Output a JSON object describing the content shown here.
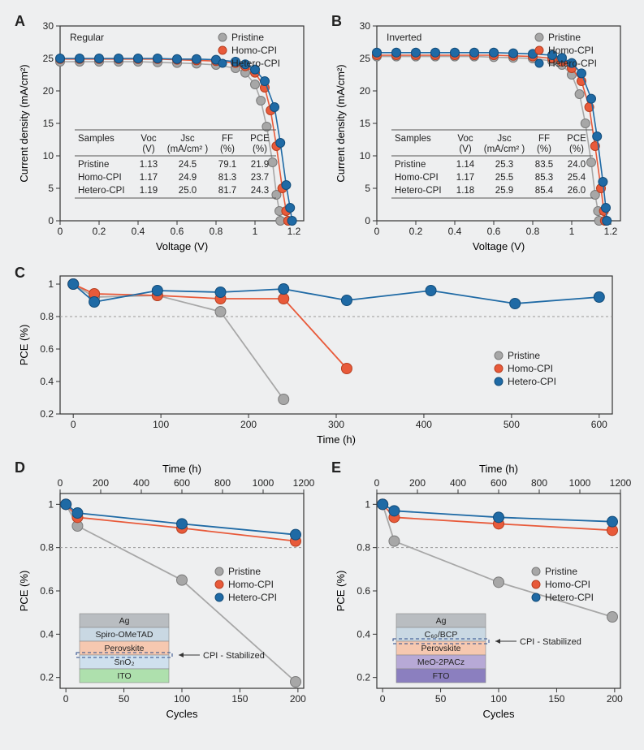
{
  "colors": {
    "pristine": "#a7a7a7",
    "homo": "#e85a3a",
    "hetero": "#1f6aa5",
    "pristine_edge": "#7a7a7a",
    "homo_edge": "#b73f20",
    "hetero_edge": "#124c7a",
    "axis": "#333333",
    "grid": "#bdbdbd",
    "grid_dash": "#999999",
    "background": "#eeeff0",
    "text": "#222222"
  },
  "panelA": {
    "label": "A",
    "title": "Regular",
    "type": "scatter-line",
    "xlabel": "Voltage (V)",
    "ylabel": "Current density (mA/cm²)",
    "xlim": [
      0.0,
      1.25
    ],
    "ylim": [
      0,
      30
    ],
    "xticks": [
      0.0,
      0.2,
      0.4,
      0.6,
      0.8,
      1.0,
      1.2
    ],
    "yticks": [
      0,
      5,
      10,
      15,
      20,
      25,
      30
    ],
    "marker_size": 5.5,
    "line_width": 1.6,
    "series": {
      "pristine": {
        "label": "Pristine",
        "x": [
          0.0,
          0.1,
          0.2,
          0.3,
          0.4,
          0.5,
          0.6,
          0.7,
          0.8,
          0.9,
          0.95,
          1.0,
          1.03,
          1.06,
          1.09,
          1.11,
          1.125,
          1.13
        ],
        "y": [
          24.5,
          24.5,
          24.5,
          24.5,
          24.5,
          24.4,
          24.3,
          24.2,
          24.0,
          23.5,
          22.8,
          21.0,
          18.5,
          14.5,
          9.0,
          4.0,
          1.5,
          0.0
        ]
      },
      "homo": {
        "label": "Homo-CPI",
        "x": [
          0.0,
          0.1,
          0.2,
          0.3,
          0.4,
          0.5,
          0.6,
          0.7,
          0.8,
          0.9,
          0.95,
          1.0,
          1.05,
          1.08,
          1.11,
          1.14,
          1.16,
          1.17
        ],
        "y": [
          24.9,
          24.9,
          24.9,
          24.9,
          24.9,
          24.9,
          24.8,
          24.7,
          24.6,
          24.3,
          23.8,
          22.8,
          20.5,
          17.0,
          11.5,
          5.0,
          1.5,
          0.0
        ]
      },
      "hetero": {
        "label": "Hetero-CPI",
        "x": [
          0.0,
          0.1,
          0.2,
          0.3,
          0.4,
          0.5,
          0.6,
          0.7,
          0.8,
          0.9,
          0.95,
          1.0,
          1.05,
          1.1,
          1.13,
          1.16,
          1.18,
          1.19
        ],
        "y": [
          25.0,
          25.0,
          25.0,
          25.0,
          25.0,
          25.0,
          24.9,
          24.9,
          24.8,
          24.5,
          24.1,
          23.3,
          21.5,
          17.5,
          12.0,
          5.5,
          2.0,
          0.0
        ]
      }
    },
    "table": {
      "columns": [
        "Samples",
        "Voc\n(V)",
        "Jsc\n(mA/cm² )",
        "FF\n(%)",
        "PCE\n(%)"
      ],
      "rows": [
        [
          "Pristine",
          "1.13",
          "24.5",
          "79.1",
          "21.9"
        ],
        [
          "Homo-CPI",
          "1.17",
          "24.9",
          "81.3",
          "23.7"
        ],
        [
          "Hetero-CPI",
          "1.19",
          "25.0",
          "81.7",
          "24.3"
        ]
      ]
    }
  },
  "panelB": {
    "label": "B",
    "title": "Inverted",
    "type": "scatter-line",
    "xlabel": "Voltage (V)",
    "ylabel": "Current density (mA/cm²)",
    "xlim": [
      0.0,
      1.25
    ],
    "ylim": [
      0,
      30
    ],
    "xticks": [
      0.0,
      0.2,
      0.4,
      0.6,
      0.8,
      1.0,
      1.2
    ],
    "yticks": [
      0,
      5,
      10,
      15,
      20,
      25,
      30
    ],
    "marker_size": 5.5,
    "line_width": 1.6,
    "series": {
      "pristine": {
        "label": "Pristine",
        "x": [
          0.0,
          0.1,
          0.2,
          0.3,
          0.4,
          0.5,
          0.6,
          0.7,
          0.8,
          0.9,
          0.95,
          1.0,
          1.04,
          1.07,
          1.1,
          1.12,
          1.135,
          1.14
        ],
        "y": [
          25.3,
          25.3,
          25.3,
          25.3,
          25.3,
          25.3,
          25.2,
          25.1,
          25.0,
          24.6,
          24.0,
          22.5,
          19.5,
          15.0,
          9.0,
          4.0,
          1.5,
          0.0
        ]
      },
      "homo": {
        "label": "Homo-CPI",
        "x": [
          0.0,
          0.1,
          0.2,
          0.3,
          0.4,
          0.5,
          0.6,
          0.7,
          0.8,
          0.9,
          0.95,
          1.0,
          1.05,
          1.09,
          1.12,
          1.15,
          1.165,
          1.17
        ],
        "y": [
          25.5,
          25.5,
          25.5,
          25.5,
          25.5,
          25.5,
          25.5,
          25.4,
          25.3,
          25.0,
          24.5,
          23.5,
          21.5,
          17.5,
          11.5,
          5.0,
          1.5,
          0.0
        ]
      },
      "hetero": {
        "label": "Hetero-CPI",
        "x": [
          0.0,
          0.1,
          0.2,
          0.3,
          0.4,
          0.5,
          0.6,
          0.7,
          0.8,
          0.9,
          0.95,
          1.0,
          1.05,
          1.1,
          1.13,
          1.16,
          1.175,
          1.18
        ],
        "y": [
          25.9,
          25.9,
          25.9,
          25.9,
          25.9,
          25.9,
          25.9,
          25.8,
          25.7,
          25.5,
          25.1,
          24.3,
          22.7,
          18.8,
          13.0,
          6.0,
          2.0,
          0.0
        ]
      }
    },
    "table": {
      "columns": [
        "Samples",
        "Voc\n(V)",
        "Jsc\n(mA/cm² )",
        "FF\n(%)",
        "PCE\n(%)"
      ],
      "rows": [
        [
          "Pristine",
          "1.14",
          "25.3",
          "83.5",
          "24.0"
        ],
        [
          "Homo-CPI",
          "1.17",
          "25.5",
          "85.3",
          "25.4"
        ],
        [
          "Hetero-CPI",
          "1.18",
          "25.9",
          "85.4",
          "26.0"
        ]
      ]
    }
  },
  "panelC": {
    "label": "C",
    "type": "scatter-line",
    "xlabel": "Time (h)",
    "ylabel": "PCE (%)",
    "xlim": [
      -15,
      615
    ],
    "ylim": [
      0.2,
      1.05
    ],
    "xticks": [
      0,
      100,
      200,
      300,
      400,
      500,
      600
    ],
    "yticks": [
      0.2,
      0.4,
      0.6,
      0.8,
      1.0
    ],
    "ref_line_y": 0.8,
    "marker_size": 6.5,
    "line_width": 1.8,
    "series": {
      "pristine": {
        "label": "Pristine",
        "x": [
          0,
          24,
          96,
          168,
          240
        ],
        "y": [
          1.0,
          0.92,
          0.93,
          0.83,
          0.29
        ]
      },
      "homo": {
        "label": "Homo-CPI",
        "x": [
          0,
          24,
          96,
          168,
          240,
          312
        ],
        "y": [
          1.0,
          0.94,
          0.93,
          0.91,
          0.91,
          0.48
        ]
      },
      "hetero": {
        "label": "Hetero-CPI",
        "x": [
          0,
          24,
          96,
          168,
          240,
          312,
          408,
          504,
          600
        ],
        "y": [
          1.0,
          0.89,
          0.96,
          0.95,
          0.97,
          0.9,
          0.96,
          0.88,
          0.92
        ]
      }
    }
  },
  "panelD": {
    "label": "D",
    "type": "scatter-line",
    "top_xlabel": "Time (h)",
    "top_xticks": [
      0,
      200,
      400,
      600,
      800,
      1000,
      1200
    ],
    "xlabel": "Cycles",
    "ylabel": "PCE (%)",
    "xlim": [
      -5,
      205
    ],
    "ylim": [
      0.15,
      1.05
    ],
    "xticks": [
      0,
      50,
      100,
      150,
      200
    ],
    "yticks": [
      0.2,
      0.4,
      0.6,
      0.8,
      1.0
    ],
    "ref_line_y": 0.8,
    "marker_size": 6.5,
    "line_width": 1.8,
    "series": {
      "pristine": {
        "label": "Pristine",
        "x": [
          0,
          10,
          100,
          198
        ],
        "y": [
          1.0,
          0.9,
          0.65,
          0.18
        ]
      },
      "homo": {
        "label": "Homo-CPI",
        "x": [
          0,
          10,
          100,
          198
        ],
        "y": [
          1.0,
          0.94,
          0.89,
          0.83
        ]
      },
      "hetero": {
        "label": "Hetero-CPI",
        "x": [
          0,
          10,
          100,
          198
        ],
        "y": [
          1.0,
          0.96,
          0.91,
          0.86
        ]
      }
    },
    "stack": {
      "annotation": "CPI - Stabilized",
      "layers": [
        {
          "label": "Ag",
          "fill": "#b9bdc1"
        },
        {
          "label": "Spiro-OMeTAD",
          "fill": "#c9d8e3"
        },
        {
          "label": "Perovskite",
          "fill": "#f6c8b0"
        },
        {
          "label": "SnO₂",
          "fill": "#cfe0ee"
        },
        {
          "label": "ITO",
          "fill": "#aee0ad"
        }
      ],
      "dash_between": 3
    }
  },
  "panelE": {
    "label": "E",
    "type": "scatter-line",
    "top_xlabel": "Time (h)",
    "top_xticks": [
      0,
      200,
      400,
      600,
      800,
      1000,
      1200
    ],
    "xlabel": "Cycles",
    "ylabel": "PCE (%)",
    "xlim": [
      -5,
      205
    ],
    "ylim": [
      0.15,
      1.05
    ],
    "xticks": [
      0,
      50,
      100,
      150,
      200
    ],
    "yticks": [
      0.2,
      0.4,
      0.6,
      0.8,
      1.0
    ],
    "ref_line_y": 0.8,
    "marker_size": 6.5,
    "line_width": 1.8,
    "series": {
      "pristine": {
        "label": "Pristine",
        "x": [
          0,
          10,
          100,
          198
        ],
        "y": [
          1.0,
          0.83,
          0.64,
          0.48
        ]
      },
      "homo": {
        "label": "Homo-CPI",
        "x": [
          0,
          10,
          100,
          198
        ],
        "y": [
          1.0,
          0.94,
          0.91,
          0.88
        ]
      },
      "hetero": {
        "label": "Hetero-CPI",
        "x": [
          0,
          10,
          100,
          198
        ],
        "y": [
          1.0,
          0.97,
          0.94,
          0.92
        ]
      }
    },
    "stack": {
      "annotation": "CPI - Stabilized",
      "layers": [
        {
          "label": "Ag",
          "fill": "#b9bdc1"
        },
        {
          "label": "C₆₀/BCP",
          "fill": "#c9d8e3"
        },
        {
          "label": "Perovskite",
          "fill": "#f6c8b0"
        },
        {
          "label": "MeO-2PACz",
          "fill": "#b7a9d6"
        },
        {
          "label": "FTO",
          "fill": "#8b7fbf"
        }
      ],
      "dash_between": 2
    }
  },
  "font": {
    "panel_label_size": 18,
    "axis_label_size": 13,
    "tick_label_size": 12,
    "legend_size": 12,
    "table_size": 11.5,
    "stack_label_size": 10.5
  }
}
